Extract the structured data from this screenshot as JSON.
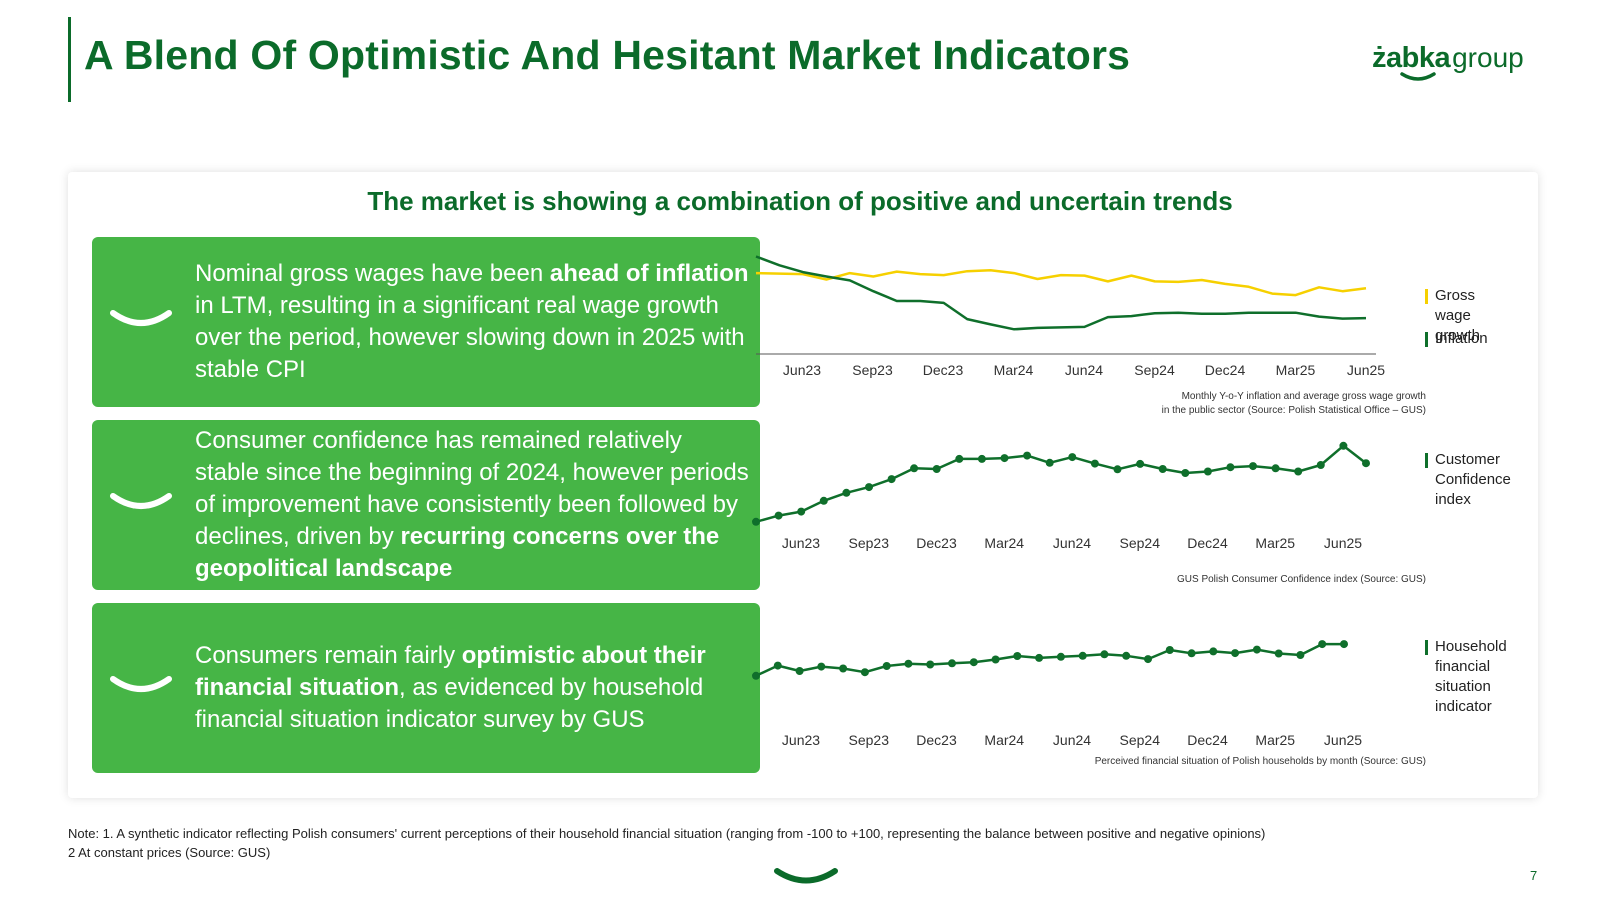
{
  "title": "A Blend Of Optimistic And Hesitant Market Indicators",
  "logo": {
    "brand": "żabka",
    "suffix": "group"
  },
  "subtitle": "The market is showing a combination of positive and uncertain trends",
  "boxes": [
    {
      "parts": [
        {
          "t": "Nominal gross wages have been ",
          "b": false
        },
        {
          "t": "ahead of inflation",
          "b": true
        },
        {
          "t": " in LTM, resulting in a significant real wage growth over the period, however slowing down in 2025 with stable CPI",
          "b": false
        }
      ]
    },
    {
      "parts": [
        {
          "t": "Consumer confidence has remained relatively stable since the beginning of 2024, however periods of improvement have consistently been followed by declines, driven by ",
          "b": false
        },
        {
          "t": "recurring concerns over the geopolitical landscape",
          "b": true
        }
      ]
    },
    {
      "parts": [
        {
          "t": "Consumers remain fairly ",
          "b": false
        },
        {
          "t": "optimistic about their financial situation",
          "b": true
        },
        {
          "t": ", as evidenced by household financial situation indicator survey by GUS",
          "b": false
        }
      ]
    }
  ],
  "colors": {
    "dark_green": "#0b6b2a",
    "box_green": "#46b546",
    "yellow": "#f6d000",
    "line_green": "#0f6f2b"
  },
  "chart_data": [
    {
      "type": "line",
      "title": "",
      "x_ticks": [
        "Jun23",
        "Sep23",
        "Dec23",
        "Mar24",
        "Jun24",
        "Sep24",
        "Dec24",
        "Mar25",
        "Jun25"
      ],
      "caption_lines": [
        "Monthly Y-o-Y inflation and average gross wage growth",
        "in the public sector (Source: Polish Statistical Office – GUS)"
      ],
      "ylim": [
        0,
        18
      ],
      "series": [
        {
          "name": "Gross wage growth",
          "color": "#f6d000",
          "markers": false,
          "values": [
            14.5,
            14.4,
            14.3,
            13.2,
            14.5,
            13.8,
            14.8,
            14.3,
            14.1,
            14.9,
            15.1,
            14.5,
            13.3,
            14.1,
            14.0,
            12.8,
            14.0,
            12.8,
            12.7,
            13.1,
            12.3,
            11.7,
            10.3,
            10.0,
            11.6,
            10.8,
            11.4
          ]
        },
        {
          "name": "Inflation",
          "color": "#0f6f2b",
          "markers": false,
          "values": [
            17.9,
            16.1,
            14.7,
            13.8,
            13.0,
            10.8,
            8.8,
            8.8,
            8.4,
            5.1,
            4.0,
            3.0,
            3.3,
            3.4,
            3.5,
            5.5,
            5.7,
            6.3,
            6.4,
            6.2,
            6.2,
            6.4,
            6.4,
            6.4,
            5.6,
            5.2,
            5.3
          ]
        }
      ]
    },
    {
      "type": "line",
      "title": "",
      "x_ticks": [
        "Jun23",
        "Sep23",
        "Dec23",
        "Mar24",
        "Jun24",
        "Sep24",
        "Dec24",
        "Mar25",
        "Jun25"
      ],
      "caption_lines": [
        "GUS Polish Consumer Confidence index (Source: GUS)"
      ],
      "ylim": [
        -34,
        -8
      ],
      "series": [
        {
          "name": "Customer Confidence index",
          "color": "#0f6f2b",
          "markers": true,
          "values": [
            -32.0,
            -30.3,
            -29.2,
            -26.2,
            -24.0,
            -22.4,
            -20.2,
            -17.2,
            -17.4,
            -14.6,
            -14.6,
            -14.4,
            -13.7,
            -15.7,
            -14.1,
            -15.9,
            -17.5,
            -16.0,
            -17.4,
            -18.5,
            -18.1,
            -16.9,
            -16.6,
            -17.2,
            -18.1,
            -16.3,
            -11.0,
            -15.8
          ]
        }
      ]
    },
    {
      "type": "line",
      "title": "",
      "x_ticks": [
        "Jun23",
        "Sep23",
        "Dec23",
        "Mar24",
        "Jun24",
        "Sep24",
        "Dec24",
        "Mar25",
        "Jun25"
      ],
      "caption_lines": [
        "Perceived financial situation of Polish households by month (Source: GUS)"
      ],
      "ylim": [
        -20,
        5
      ],
      "series": [
        {
          "name": "Household financial situation indicator",
          "color": "#0f6f2b",
          "markers": true,
          "values": [
            -17.0,
            -12.1,
            -14.7,
            -12.6,
            -13.5,
            -15.3,
            -12.3,
            -11.2,
            -11.6,
            -11.0,
            -10.5,
            -9.2,
            -7.5,
            -8.4,
            -7.9,
            -7.4,
            -6.7,
            -7.4,
            -9.0,
            -4.6,
            -6.2,
            -5.3,
            -6.1,
            -4.4,
            -6.3,
            -7.0,
            -1.8,
            -1.8
          ]
        }
      ]
    }
  ],
  "note": {
    "line1": "Note: 1. A synthetic indicator reflecting Polish consumers' current perceptions of their household financial situation (ranging from -100 to +100, representing the balance between positive and negative opinions)",
    "line2": "2 At constant prices (Source: GUS)"
  },
  "page_number": "7"
}
